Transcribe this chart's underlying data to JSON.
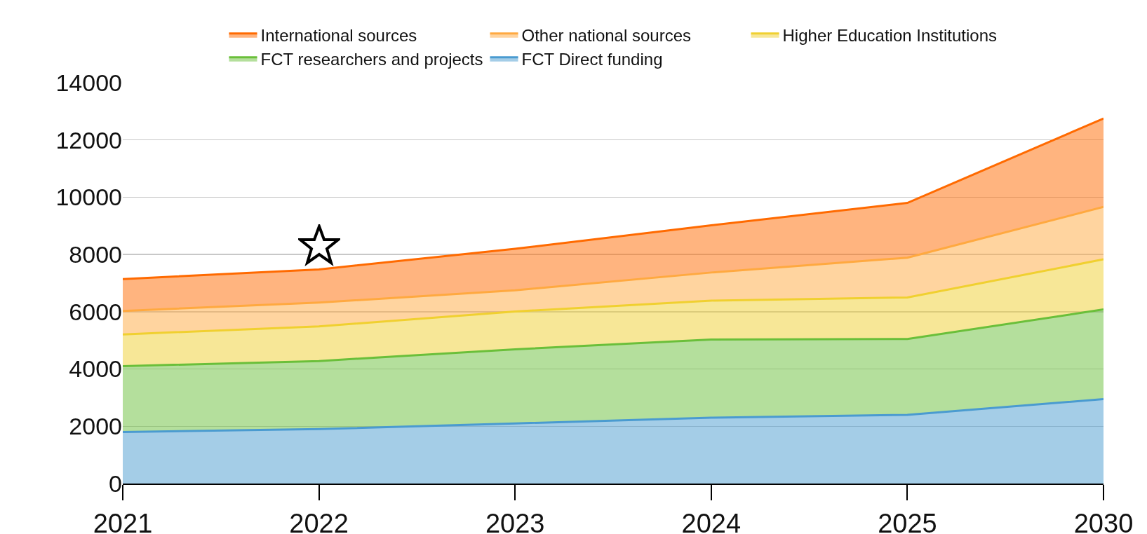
{
  "chart_data": {
    "type": "area",
    "stacked": true,
    "categories": [
      "2021",
      "2022",
      "2023",
      "2024",
      "2025",
      "2030"
    ],
    "series": [
      {
        "name": "FCT Direct funding",
        "color": "#4a9bd0",
        "values": [
          1800,
          1900,
          2100,
          2300,
          2400,
          2950
        ]
      },
      {
        "name": "FCT researchers and projects",
        "color": "#6abf3a",
        "values": [
          2300,
          2380,
          2590,
          2730,
          2650,
          3130
        ]
      },
      {
        "name": "Higher Education Institutions",
        "color": "#f0d030",
        "values": [
          1110,
          1210,
          1320,
          1360,
          1450,
          1750
        ]
      },
      {
        "name": "Other national sources",
        "color": "#ffa940",
        "values": [
          820,
          830,
          740,
          980,
          1390,
          1830
        ]
      },
      {
        "name": "International sources",
        "color": "#ff6a00",
        "values": [
          1110,
          1160,
          1450,
          1650,
          1910,
          3090
        ]
      }
    ],
    "ylim": [
      0,
      14000
    ],
    "yticks": [
      0,
      2000,
      4000,
      6000,
      8000,
      10000,
      12000,
      14000
    ],
    "grid": "y",
    "legend": "top",
    "marker": "none",
    "line_style": "solid"
  }
}
